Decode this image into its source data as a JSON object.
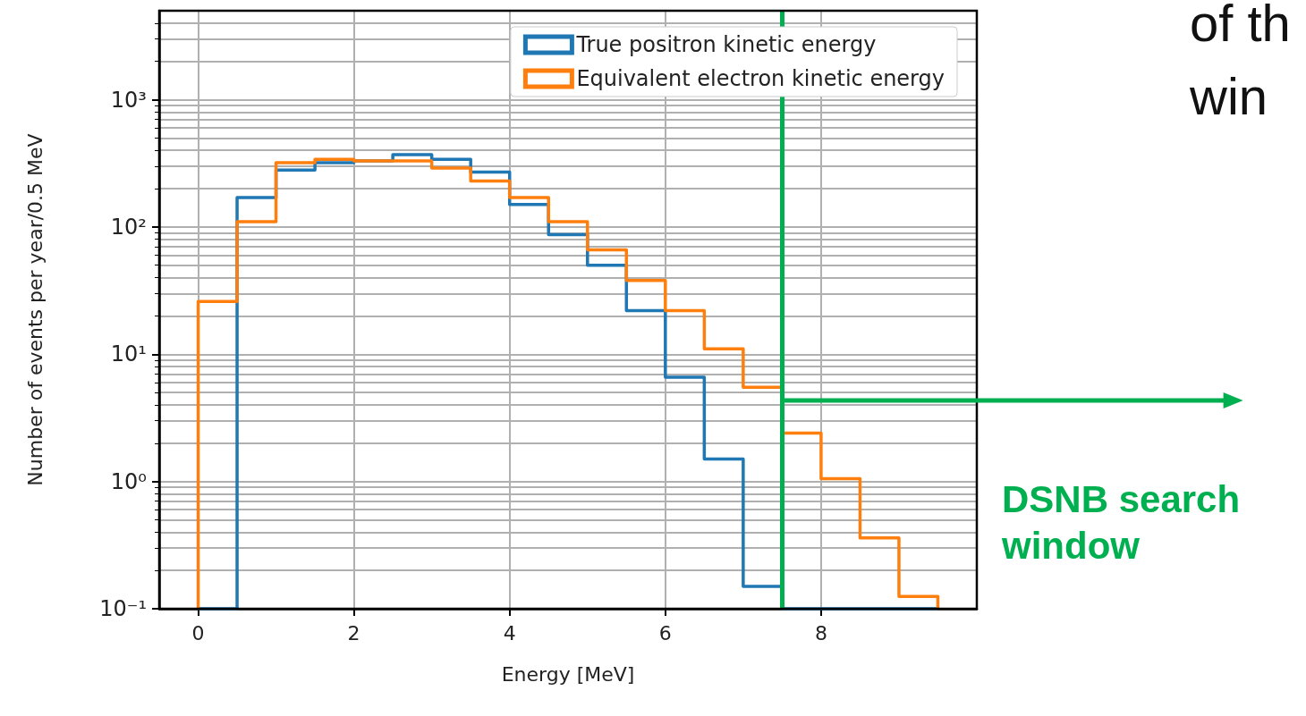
{
  "chart_data": {
    "type": "histogram",
    "xlabel": "Energy [MeV]",
    "ylabel": "Number of events per year/0.5 MeV",
    "bins": [
      0,
      0.5,
      1,
      1.5,
      2,
      2.5,
      3,
      3.5,
      4,
      4.5,
      5,
      5.5,
      6,
      6.5,
      7,
      7.5,
      8,
      8.5,
      9,
      9.5
    ],
    "series": [
      {
        "name": "True positron kinetic energy",
        "color": "#1f77b4",
        "values": [
          null,
          170,
          280,
          320,
          330,
          370,
          340,
          270,
          150,
          87,
          50,
          22,
          6.6,
          1.5,
          0.15,
          null,
          null,
          null,
          null
        ]
      },
      {
        "name": "Equivalent electron kinetic energy",
        "color": "#ff7f0e",
        "values": [
          26,
          110,
          320,
          340,
          330,
          330,
          290,
          230,
          170,
          110,
          66,
          38,
          22,
          11,
          5.5,
          2.4,
          1.05,
          0.36,
          0.125
        ]
      }
    ],
    "log": "y",
    "xlim": [
      -0.5,
      10
    ],
    "xticks": [
      0,
      2,
      4,
      6,
      8
    ],
    "ylim": [
      0.1,
      5000
    ],
    "yticks": [
      {
        "value": 0.1,
        "label": "10⁻¹"
      },
      {
        "value": 1,
        "label": "10⁰"
      },
      {
        "value": 10,
        "label": "10¹"
      },
      {
        "value": 100,
        "label": "10²"
      },
      {
        "value": 1000,
        "label": "10³"
      }
    ],
    "grid": true,
    "legend": "top right",
    "ref_lines": [
      {
        "axis": "x",
        "value": 7.5,
        "color": "#00b050"
      }
    ],
    "annotations": [
      "of th",
      "win",
      "DSNB search window"
    ]
  }
}
